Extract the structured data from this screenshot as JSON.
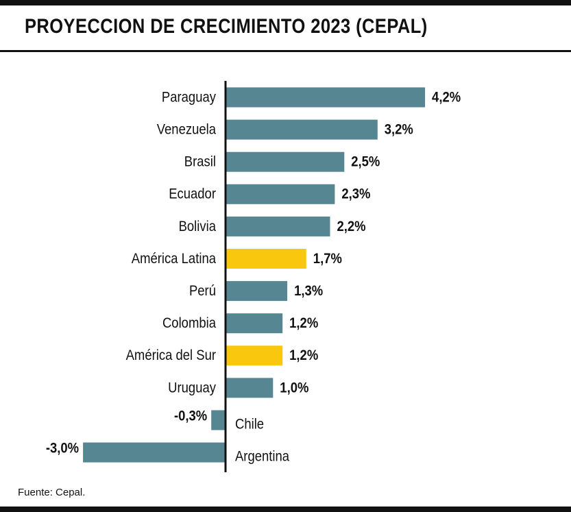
{
  "title": "PROYECCION DE CRECIMIENTO 2023 (CEPAL)",
  "source": "Fuente: Cepal.",
  "colors": {
    "default": "#558692",
    "highlight": "#f9c80e",
    "text": "#111111"
  },
  "chart_data": {
    "type": "bar",
    "orientation": "horizontal",
    "title": "PROYECCION DE CRECIMIENTO 2023 (CEPAL)",
    "unit": "%",
    "categories": [
      "Paraguay",
      "Venezuela",
      "Brasil",
      "Ecuador",
      "Bolivia",
      "América Latina",
      "Perú",
      "Colombia",
      "América del Sur",
      "Uruguay",
      "Chile",
      "Argentina"
    ],
    "values": [
      4.2,
      3.2,
      2.5,
      2.3,
      2.2,
      1.7,
      1.3,
      1.2,
      1.2,
      1.0,
      -0.3,
      -3.0
    ],
    "labels": [
      "4,2%",
      "3,2%",
      "2,5%",
      "2,3%",
      "2,2%",
      "1,7%",
      "1,3%",
      "1,2%",
      "1,2%",
      "1,0%",
      "-0,3%",
      "-3,0%"
    ],
    "highlighted": [
      "América Latina",
      "América del Sur"
    ],
    "xlim": [
      -3.0,
      4.2
    ],
    "grid": false,
    "legend": "none"
  }
}
